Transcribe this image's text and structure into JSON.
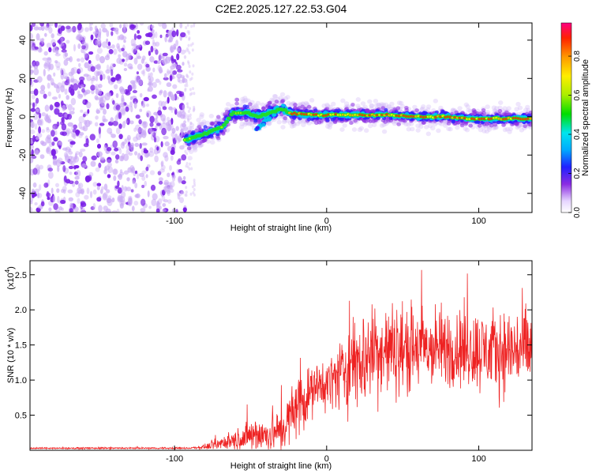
{
  "title": "C2E2.2025.127.22.53.G04",
  "colors": {
    "snr_line": "#ee2222",
    "axis": "#000000",
    "noise_dots": "#7a1fe6"
  },
  "chart_data": [
    {
      "type": "heatmap",
      "name": "spectrogram",
      "xlabel": "Height of straight line (km)",
      "ylabel": "Frequency (Hz)",
      "xlim": [
        -195,
        135
      ],
      "ylim": [
        -50,
        49
      ],
      "xticks": [
        -100,
        0,
        100
      ],
      "xtick_labels": [
        "-100",
        "0",
        "100"
      ],
      "yticks": [
        -40,
        -20,
        0,
        20,
        40
      ],
      "ytick_labels": [
        "-40",
        "-20",
        "0",
        "20",
        "40"
      ],
      "noise_region_x": [
        -195,
        -93
      ],
      "signal_track": [
        {
          "x": -93,
          "f": -12
        },
        {
          "x": -80,
          "f": -9
        },
        {
          "x": -68,
          "f": -5
        },
        {
          "x": -62,
          "f": 2
        },
        {
          "x": -52,
          "f": 2
        },
        {
          "x": -45,
          "f": 0
        },
        {
          "x": -38,
          "f": 2
        },
        {
          "x": -30,
          "f": 4
        },
        {
          "x": -24,
          "f": 2
        },
        {
          "x": -10,
          "f": 1
        },
        {
          "x": 0,
          "f": 1
        },
        {
          "x": 20,
          "f": 1
        },
        {
          "x": 40,
          "f": 1
        },
        {
          "x": 60,
          "f": 0
        },
        {
          "x": 80,
          "f": 0
        },
        {
          "x": 95,
          "f": -1
        },
        {
          "x": 110,
          "f": -1
        },
        {
          "x": 125,
          "f": -1
        },
        {
          "x": 135,
          "f": -1
        }
      ],
      "colorbar": {
        "label": "Normalized spectral amplitude",
        "range": [
          0,
          0.97
        ],
        "ticks": [
          0.0,
          0.2,
          0.4,
          0.6,
          0.8
        ],
        "tick_labels": [
          "0.0",
          "0.2",
          "0.4",
          "0.6",
          "0.8"
        ]
      }
    },
    {
      "type": "line",
      "name": "snr",
      "xlabel": "Height of straight line (km)",
      "ylabel": "SNR (10 * v/v)",
      "y_scale_label": "(x10",
      "y_scale_exp": "4",
      "y_scale_close": ")",
      "xlim": [
        -195,
        135
      ],
      "ylim": [
        0,
        2.7
      ],
      "xticks": [
        -100,
        0,
        100
      ],
      "xtick_labels": [
        "-100",
        "0",
        "100"
      ],
      "yticks": [
        0.5,
        1.0,
        1.5,
        2.0,
        2.5
      ],
      "ytick_labels": [
        "0.5",
        "1.0",
        "1.5",
        "2.0",
        "2.5"
      ],
      "envelope": [
        {
          "x": -195,
          "mean": 0.03,
          "spread": 0.01
        },
        {
          "x": -90,
          "mean": 0.03,
          "spread": 0.01
        },
        {
          "x": -80,
          "mean": 0.05,
          "spread": 0.03
        },
        {
          "x": -70,
          "mean": 0.1,
          "spread": 0.08
        },
        {
          "x": -60,
          "mean": 0.15,
          "spread": 0.12
        },
        {
          "x": -50,
          "mean": 0.2,
          "spread": 0.2
        },
        {
          "x": -40,
          "mean": 0.22,
          "spread": 0.22
        },
        {
          "x": -30,
          "mean": 0.28,
          "spread": 0.25
        },
        {
          "x": -20,
          "mean": 0.6,
          "spread": 0.4
        },
        {
          "x": -10,
          "mean": 0.85,
          "spread": 0.3
        },
        {
          "x": 0,
          "mean": 0.95,
          "spread": 0.3
        },
        {
          "x": 10,
          "mean": 1.1,
          "spread": 0.45
        },
        {
          "x": 20,
          "mean": 1.25,
          "spread": 0.6
        },
        {
          "x": 30,
          "mean": 1.4,
          "spread": 0.6
        },
        {
          "x": 50,
          "mean": 1.45,
          "spread": 0.55
        },
        {
          "x": 70,
          "mean": 1.45,
          "spread": 0.5
        },
        {
          "x": 90,
          "mean": 1.45,
          "spread": 0.5
        },
        {
          "x": 110,
          "mean": 1.4,
          "spread": 0.5
        },
        {
          "x": 135,
          "mean": 1.45,
          "spread": 0.55
        }
      ]
    }
  ]
}
